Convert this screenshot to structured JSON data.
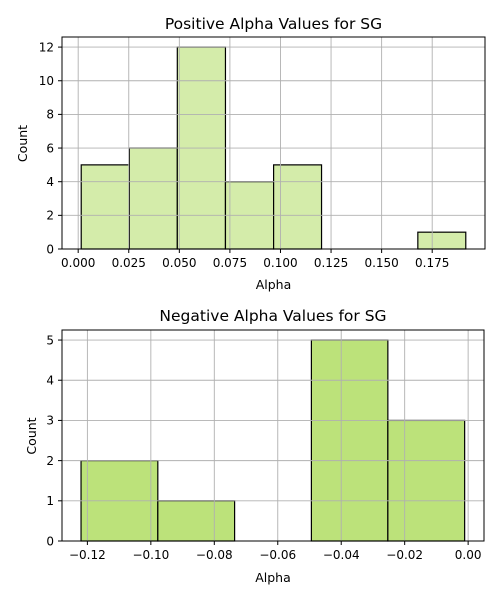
{
  "chart_data": [
    {
      "type": "bar",
      "title": "Positive Alpha Values for SG",
      "xlabel": "Alpha",
      "ylabel": "Count",
      "bins": [
        {
          "x0": 0.0015,
          "x1": 0.0253,
          "count": 5
        },
        {
          "x0": 0.0253,
          "x1": 0.049,
          "count": 6
        },
        {
          "x0": 0.049,
          "x1": 0.0728,
          "count": 12
        },
        {
          "x0": 0.0728,
          "x1": 0.0966,
          "count": 4
        },
        {
          "x0": 0.0966,
          "x1": 0.1203,
          "count": 5
        },
        {
          "x0": 0.1203,
          "x1": 0.1441,
          "count": 0
        },
        {
          "x0": 0.1441,
          "x1": 0.1679,
          "count": 0
        },
        {
          "x0": 0.1679,
          "x1": 0.1916,
          "count": 1
        }
      ],
      "xlim": [
        -0.008,
        0.2011
      ],
      "ylim": [
        0,
        12.6
      ],
      "xticks": [
        0.0,
        0.025,
        0.05,
        0.075,
        0.1,
        0.125,
        0.15,
        0.175
      ],
      "xtick_labels": [
        "0.000",
        "0.025",
        "0.050",
        "0.075",
        "0.100",
        "0.125",
        "0.150",
        "0.175"
      ],
      "yticks": [
        0,
        2,
        4,
        6,
        8,
        10,
        12
      ],
      "ytick_labels": [
        "0",
        "2",
        "4",
        "6",
        "8",
        "10",
        "12"
      ],
      "grid": true,
      "bar_color": "#d4ecaa",
      "edge_color": "#000000"
    },
    {
      "type": "bar",
      "title": "Negative Alpha Values for SG",
      "xlabel": "Alpha",
      "ylabel": "Count",
      "bins": [
        {
          "x0": -0.122,
          "x1": -0.0978,
          "count": 2
        },
        {
          "x0": -0.0978,
          "x1": -0.0736,
          "count": 1
        },
        {
          "x0": -0.0736,
          "x1": -0.0494,
          "count": 0
        },
        {
          "x0": -0.0494,
          "x1": -0.0253,
          "count": 5
        },
        {
          "x0": -0.0253,
          "x1": -0.0011,
          "count": 3
        }
      ],
      "xlim": [
        -0.128,
        0.005
      ],
      "ylim": [
        0,
        5.25
      ],
      "xticks": [
        -0.12,
        -0.1,
        -0.08,
        -0.06,
        -0.04,
        -0.02,
        0.0
      ],
      "xtick_labels": [
        "−0.12",
        "−0.10",
        "−0.08",
        "−0.06",
        "−0.04",
        "−0.02",
        "0.00"
      ],
      "yticks": [
        0,
        1,
        2,
        3,
        4,
        5
      ],
      "ytick_labels": [
        "0",
        "1",
        "2",
        "3",
        "4",
        "5"
      ],
      "grid": true,
      "bar_color": "#bce27a",
      "edge_color": "#000000"
    }
  ]
}
